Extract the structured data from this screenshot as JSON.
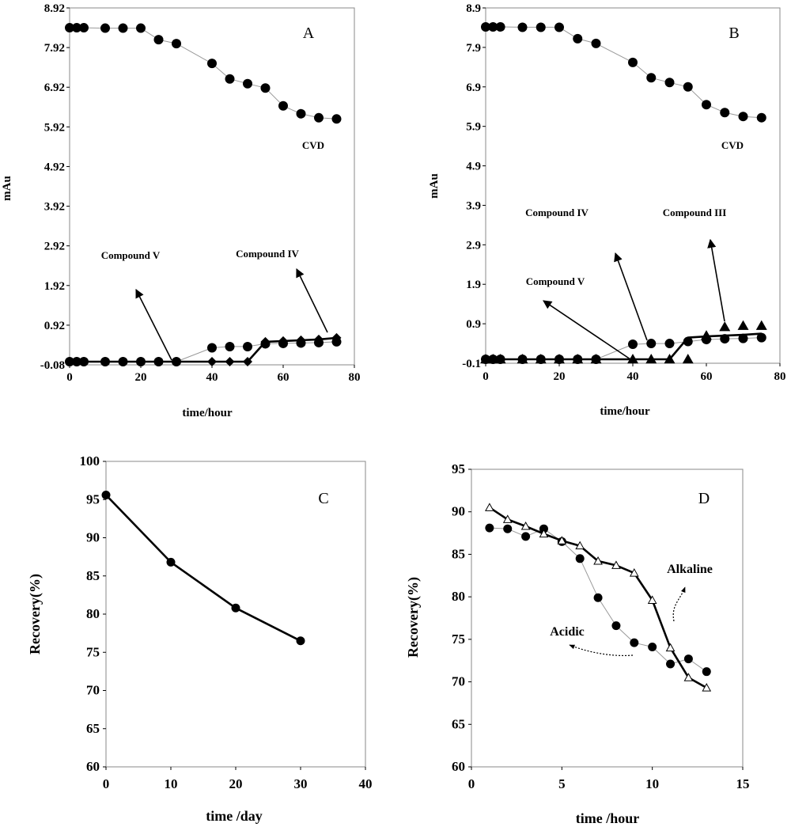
{
  "chart_data": [
    {
      "panel": "A",
      "type": "line",
      "xlabel": "time/hour",
      "ylabel": "mAu",
      "xlim": [
        0,
        80
      ],
      "ylim": [
        -0.08,
        8.92
      ],
      "xticks": [
        0,
        20,
        40,
        60,
        80
      ],
      "yticks": [
        -0.08,
        0.92,
        1.92,
        2.92,
        3.92,
        4.92,
        5.92,
        6.92,
        7.92,
        8.92
      ],
      "series": [
        {
          "name": "CVD",
          "marker": "circle",
          "line": "thin",
          "x": [
            0,
            2,
            4,
            10,
            15,
            20,
            25,
            30,
            40,
            45,
            50,
            55,
            60,
            65,
            70,
            75
          ],
          "y": [
            8.42,
            8.42,
            8.42,
            8.41,
            8.41,
            8.41,
            8.12,
            8.02,
            7.52,
            7.13,
            7.01,
            6.9,
            6.45,
            6.25,
            6.15,
            6.12
          ]
        },
        {
          "name": "Compound IV",
          "marker": "circle",
          "line": "thin",
          "x": [
            0,
            2,
            4,
            10,
            15,
            20,
            25,
            30,
            40,
            45,
            50,
            55,
            60,
            65,
            70,
            75
          ],
          "y": [
            0,
            0,
            0,
            0,
            0,
            0,
            0,
            0,
            0.35,
            0.38,
            0.38,
            0.45,
            0.46,
            0.47,
            0.48,
            0.5
          ]
        },
        {
          "name": "Compound V",
          "marker": "diamond",
          "line": "bold",
          "x": [
            0,
            2,
            4,
            10,
            15,
            20,
            25,
            30,
            40,
            45,
            50,
            55,
            60,
            65,
            70,
            75
          ],
          "y": [
            0,
            0,
            0,
            0,
            0,
            0,
            0,
            0,
            0,
            0,
            0,
            0.5,
            0.52,
            0.54,
            0.56,
            0.6
          ]
        }
      ],
      "annotations": [
        "CVD",
        "Compound V",
        "Compound IV"
      ],
      "panel_label": "A"
    },
    {
      "panel": "B",
      "type": "line",
      "xlabel": "time/hour",
      "ylabel": "mAu",
      "xlim": [
        0,
        80
      ],
      "ylim": [
        -0.1,
        8.9
      ],
      "xticks": [
        0,
        20,
        40,
        60,
        80
      ],
      "yticks": [
        -0.1,
        0.9,
        1.9,
        2.9,
        3.9,
        4.9,
        5.9,
        6.9,
        7.9,
        8.9
      ],
      "series": [
        {
          "name": "CVD",
          "marker": "circle",
          "line": "thin",
          "x": [
            0,
            2,
            4,
            10,
            15,
            20,
            25,
            30,
            40,
            45,
            50,
            55,
            60,
            65,
            70,
            75
          ],
          "y": [
            8.42,
            8.42,
            8.42,
            8.41,
            8.41,
            8.41,
            8.12,
            8.0,
            7.52,
            7.13,
            7.01,
            6.9,
            6.45,
            6.25,
            6.15,
            6.12
          ]
        },
        {
          "name": "Compound IV",
          "marker": "circle",
          "line": "thin",
          "x": [
            0,
            2,
            4,
            10,
            15,
            20,
            25,
            30,
            40,
            45,
            50,
            55,
            60,
            65,
            70,
            75
          ],
          "y": [
            0,
            0,
            0,
            0,
            0,
            0,
            0,
            0,
            0.38,
            0.4,
            0.4,
            0.45,
            0.5,
            0.52,
            0.53,
            0.55
          ]
        },
        {
          "name": "Compound V",
          "marker": "none",
          "line": "bold",
          "x": [
            0,
            2,
            4,
            10,
            15,
            20,
            25,
            30,
            40,
            45,
            50,
            55,
            60,
            65,
            70,
            75
          ],
          "y": [
            0,
            0,
            0,
            0,
            0,
            0,
            0,
            0,
            0,
            0,
            0,
            0.55,
            0.58,
            0.6,
            0.62,
            0.65
          ]
        },
        {
          "name": "Compound III",
          "marker": "triangle",
          "line": "none",
          "x": [
            0,
            2,
            4,
            10,
            15,
            20,
            25,
            30,
            40,
            45,
            50,
            55,
            60,
            65,
            70,
            75
          ],
          "y": [
            0,
            0,
            0,
            0,
            0,
            0,
            0,
            0,
            0,
            0,
            0,
            0,
            0.6,
            0.82,
            0.85,
            0.85
          ]
        }
      ],
      "annotations": [
        "CVD",
        "Compound IV",
        "Compound III",
        "Compound V"
      ],
      "panel_label": "B"
    },
    {
      "panel": "C",
      "type": "line",
      "xlabel": "time /day",
      "ylabel": "Recovery(%)",
      "xlim": [
        0,
        40
      ],
      "ylim": [
        60,
        100
      ],
      "xticks": [
        0,
        10,
        20,
        30,
        40
      ],
      "yticks": [
        60,
        65,
        70,
        75,
        80,
        85,
        90,
        95,
        100
      ],
      "series": [
        {
          "name": "",
          "marker": "circle",
          "line": "bold",
          "x": [
            0,
            10,
            20,
            30
          ],
          "y": [
            95.6,
            86.8,
            80.8,
            76.5
          ]
        }
      ],
      "panel_label": "C"
    },
    {
      "panel": "D",
      "type": "line",
      "xlabel": "time /hour",
      "ylabel": "Recovery(%)",
      "xlim": [
        0,
        15
      ],
      "ylim": [
        60,
        95
      ],
      "xticks": [
        0,
        5,
        10,
        15
      ],
      "yticks": [
        60,
        65,
        70,
        75,
        80,
        85,
        90,
        95
      ],
      "series": [
        {
          "name": "Acidic",
          "marker": "circle",
          "line": "thin",
          "x": [
            1,
            2,
            3,
            4,
            5,
            6,
            7,
            8,
            9,
            10,
            11,
            12,
            13
          ],
          "y": [
            88.1,
            88.0,
            87.1,
            88.0,
            86.5,
            84.5,
            79.9,
            76.6,
            74.6,
            74.1,
            72.1,
            72.7,
            71.2
          ]
        },
        {
          "name": "Alkaline",
          "marker": "triangle-open",
          "line": "bold",
          "x": [
            1,
            2,
            3,
            4,
            5,
            6,
            7,
            8,
            9,
            10,
            11,
            12,
            13
          ],
          "y": [
            90.5,
            89.1,
            88.3,
            87.4,
            86.6,
            86.0,
            84.2,
            83.7,
            82.8,
            79.6,
            74.0,
            70.5,
            69.3
          ]
        }
      ],
      "annotations": [
        "Alkaline",
        "Acidic"
      ],
      "panel_label": "D"
    }
  ]
}
